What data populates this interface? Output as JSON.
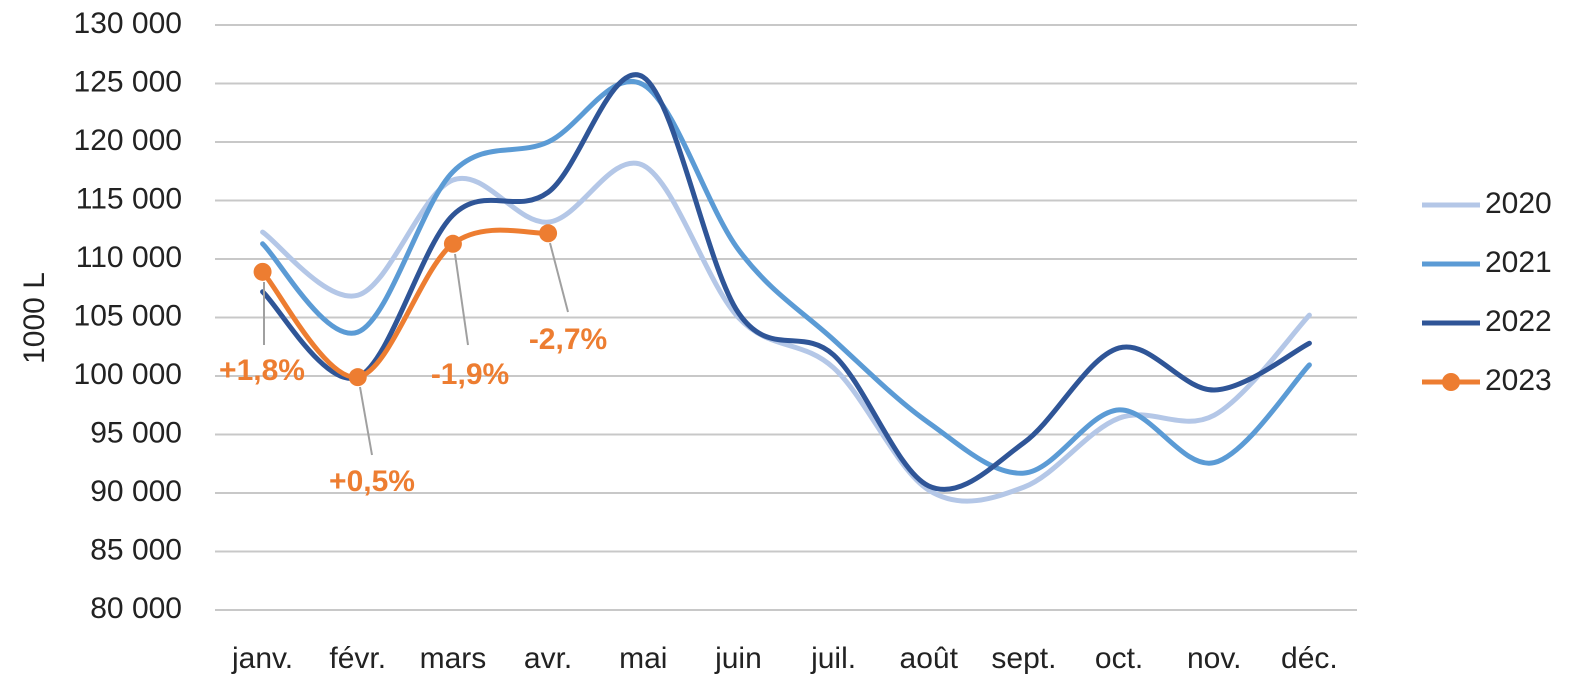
{
  "chart_data": {
    "type": "line",
    "y_label": "1000 L",
    "categories": [
      "janv.",
      "févr.",
      "mars",
      "avr.",
      "mai",
      "juin",
      "juil.",
      "août",
      "sept.",
      "oct.",
      "nov.",
      "déc."
    ],
    "series": [
      {
        "name": "2020",
        "color": "#b4c7e7",
        "values": [
          112300,
          106900,
          116750,
          113150,
          118000,
          105000,
          100700,
          90250,
          90500,
          96400,
          96650,
          105200
        ]
      },
      {
        "name": "2021",
        "color": "#5b9bd5",
        "values": [
          111300,
          103750,
          117450,
          120000,
          124900,
          110800,
          103100,
          96000,
          91700,
          97100,
          92600,
          100950
        ]
      },
      {
        "name": "2022",
        "color": "#2f5597",
        "values": [
          107200,
          99900,
          113750,
          115700,
          125550,
          105400,
          101800,
          90600,
          94300,
          102400,
          98800,
          102800
        ]
      },
      {
        "name": "2023",
        "color": "#ed7d31",
        "markers": true,
        "values": [
          108900,
          99900,
          111300,
          112200,
          null,
          null,
          null,
          null,
          null,
          null,
          null,
          null
        ]
      }
    ],
    "annotations": [
      "+1,8%",
      "+0,5%",
      "-1,9%",
      "-2,7%"
    ],
    "ylim": [
      80000,
      130000
    ],
    "yticks": [
      {
        "value": 80000,
        "label": "80 000"
      },
      {
        "value": 85000,
        "label": "85 000"
      },
      {
        "value": 90000,
        "label": "90 000"
      },
      {
        "value": 95000,
        "label": "95 000"
      },
      {
        "value": 100000,
        "label": "100 000"
      },
      {
        "value": 105000,
        "label": "105 000"
      },
      {
        "value": 110000,
        "label": "110 000"
      },
      {
        "value": 115000,
        "label": "115 000"
      },
      {
        "value": 120000,
        "label": "120 000"
      },
      {
        "value": 125000,
        "label": "125 000"
      },
      {
        "value": 130000,
        "label": "130 000"
      }
    ],
    "grid": true,
    "legend": "right",
    "smooth": true
  }
}
